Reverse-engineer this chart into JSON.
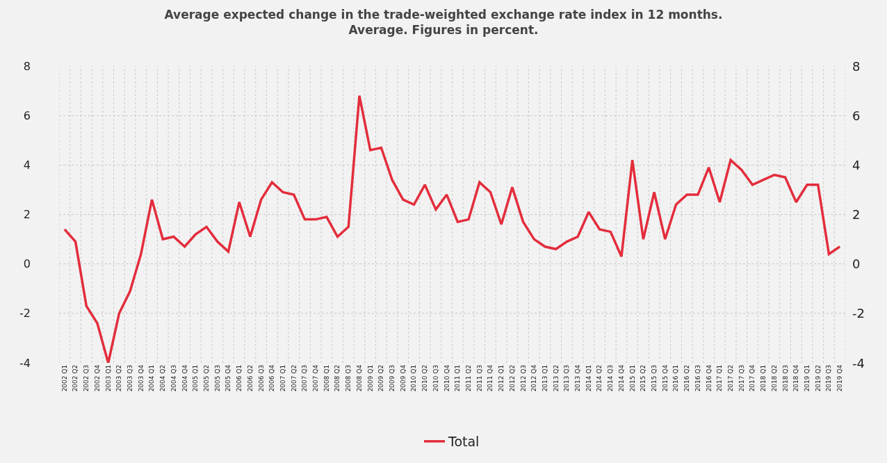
{
  "chart_data": {
    "type": "line",
    "title": "Average expected change in the trade-weighted exchange rate index in 12 months. Average. Figures in percent.",
    "categories": [
      "2002 Q1",
      "2002 Q2",
      "2002 Q3",
      "2002 Q4",
      "2003 Q1",
      "2003 Q2",
      "2003 Q3",
      "2003 Q4",
      "2004 Q1",
      "2004 Q2",
      "2004 Q3",
      "2004 Q4",
      "2005 Q1",
      "2005 Q2",
      "2005 Q3",
      "2005 Q4",
      "2006 Q1",
      "2006 Q2",
      "2006 Q3",
      "2006 Q4",
      "2007 Q1",
      "2007 Q2",
      "2007 Q3",
      "2007 Q4",
      "2008 Q1",
      "2008 Q2",
      "2008 Q3",
      "2008 Q4",
      "2009 Q1",
      "2009 Q2",
      "2009 Q3",
      "2009 Q4",
      "2010 Q1",
      "2010 Q2",
      "2010 Q3",
      "2010 Q4",
      "2011 Q1",
      "2011 Q2",
      "2011 Q3",
      "2011 Q4",
      "2012 Q1",
      "2012 Q2",
      "2012 Q3",
      "2012 Q4",
      "2013 Q1",
      "2013 Q2",
      "2013 Q3",
      "2013 Q4",
      "2014 Q1",
      "2014 Q2",
      "2014 Q3",
      "2014 Q4",
      "2015 Q1",
      "2015 Q2",
      "2015 Q3",
      "2015 Q4",
      "2016 Q1",
      "2016 Q2",
      "2016 Q3",
      "2016 Q4",
      "2017 Q1",
      "2017 Q2",
      "2017 Q3",
      "2017 Q4",
      "2018 Q1",
      "2018 Q2",
      "2018 Q3",
      "2018 Q4",
      "2019 Q1",
      "2019 Q2",
      "2019 Q3",
      "2019 Q4"
    ],
    "series": [
      {
        "name": "Total",
        "color": "#e32d3c",
        "values": [
          1.4,
          0.9,
          -1.7,
          -2.4,
          -4.0,
          -2.0,
          -1.1,
          0.4,
          2.6,
          1.0,
          1.1,
          0.7,
          1.2,
          1.5,
          0.9,
          0.5,
          2.5,
          1.1,
          2.6,
          3.3,
          2.9,
          2.8,
          1.8,
          1.8,
          1.9,
          1.1,
          1.5,
          6.8,
          4.6,
          4.7,
          3.4,
          2.6,
          2.4,
          3.2,
          2.2,
          2.8,
          1.7,
          1.8,
          3.3,
          2.9,
          1.6,
          3.1,
          1.7,
          1.0,
          0.7,
          0.6,
          0.9,
          1.1,
          2.1,
          1.4,
          1.3,
          0.3,
          4.2,
          1.0,
          2.9,
          1.0,
          2.4,
          2.8,
          2.8,
          3.9,
          2.5,
          4.2,
          3.8,
          3.2,
          3.4,
          3.6,
          3.5,
          2.5,
          3.2,
          3.2,
          0.4,
          0.7
        ]
      }
    ],
    "ylim": [
      -4,
      8
    ],
    "yticks": [
      -4,
      -2,
      0,
      2,
      4,
      6,
      8
    ],
    "y2lim": [
      -4,
      8
    ],
    "y2ticks": [
      -4,
      -2,
      0,
      2,
      4,
      6,
      8
    ],
    "grid": true,
    "legend": "bottom",
    "marker": "none",
    "line_style": "solid"
  }
}
